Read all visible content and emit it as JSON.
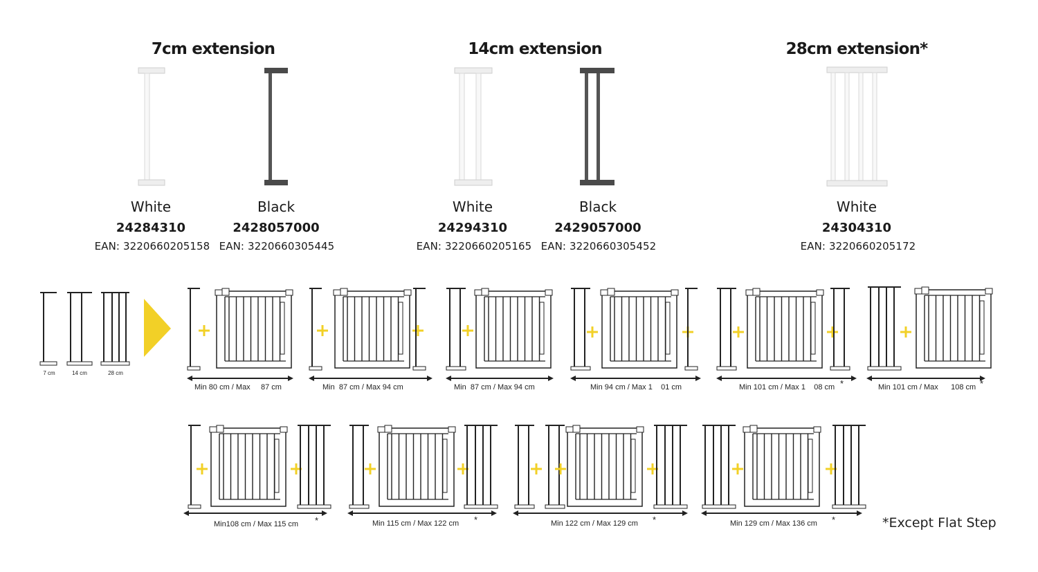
{
  "products": [
    {
      "title": "7cm extension",
      "variants": [
        {
          "color": "White",
          "code": "24284310",
          "ean": "EAN: 3220660205158"
        },
        {
          "color": "Black",
          "code": "2428057000",
          "ean": "EAN: 3220660305445"
        }
      ]
    },
    {
      "title": "14cm extension",
      "variants": [
        {
          "color": "White",
          "code": "24294310",
          "ean": "EAN: 3220660205165"
        },
        {
          "color": "Black",
          "code": "2429057000",
          "ean": "EAN: 3220660305452"
        }
      ]
    },
    {
      "title": "28cm extension*",
      "variants": [
        {
          "color": "White",
          "code": "24304310",
          "ean": "EAN: 3220660205172"
        }
      ]
    }
  ],
  "legend": {
    "sizes": [
      "7 cm",
      "14 cm",
      "28 cm"
    ]
  },
  "configs": [
    {
      "label": "Min 80 cm / Max     87 cm",
      "star": ""
    },
    {
      "label": "Min  87 cm / Max 94 cm",
      "star": ""
    },
    {
      "label": "Min  87 cm / Max 94 cm",
      "star": ""
    },
    {
      "label": "Min 94 cm / Max 1    01 cm",
      "star": ""
    },
    {
      "label": "Min 101 cm / Max 1    08 cm",
      "star": "*"
    },
    {
      "label": "Min 101 cm / Max      108 cm",
      "star": "*"
    },
    {
      "label": "Min108 cm / Max 115 cm",
      "star": "*"
    },
    {
      "label": "Min 115 cm / Max 122 cm",
      "star": "*"
    },
    {
      "label": "Min 122 cm / Max 129 cm",
      "star": "*"
    },
    {
      "label": "Min 129 cm / Max 136 cm",
      "star": "*"
    }
  ],
  "footnote": "*Except Flat Step",
  "colors": {
    "plus": "#f2d027",
    "arrow": "#f2d027",
    "frame": "#222222",
    "white_part": "#e2e2e2",
    "black_part": "#4a4a4a"
  }
}
